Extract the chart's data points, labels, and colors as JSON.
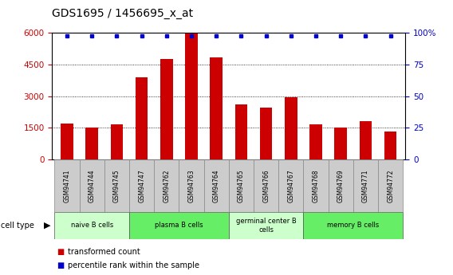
{
  "title": "GDS1695 / 1456695_x_at",
  "samples": [
    "GSM94741",
    "GSM94744",
    "GSM94745",
    "GSM94747",
    "GSM94762",
    "GSM94763",
    "GSM94764",
    "GSM94765",
    "GSM94766",
    "GSM94767",
    "GSM94768",
    "GSM94769",
    "GSM94771",
    "GSM94772"
  ],
  "transformed_count": [
    1700,
    1520,
    1650,
    3900,
    4750,
    5980,
    4850,
    2620,
    2450,
    2950,
    1650,
    1520,
    1820,
    1320
  ],
  "percentile_rank": [
    98,
    98,
    98,
    98,
    98,
    98,
    98,
    98,
    98,
    98,
    98,
    98,
    98,
    98
  ],
  "bar_color": "#cc0000",
  "dot_color": "#0000cc",
  "ylim_left": [
    0,
    6000
  ],
  "ylim_right": [
    0,
    100
  ],
  "yticks_left": [
    0,
    1500,
    3000,
    4500,
    6000
  ],
  "yticks_right": [
    0,
    25,
    50,
    75,
    100
  ],
  "cell_type_groups": [
    {
      "label": "naive B cells",
      "cols": [
        0,
        1,
        2
      ],
      "color": "#ccffcc"
    },
    {
      "label": "plasma B cells",
      "cols": [
        3,
        4,
        5,
        6
      ],
      "color": "#66ee66"
    },
    {
      "label": "germinal center B\ncells",
      "cols": [
        7,
        8,
        9
      ],
      "color": "#ccffcc"
    },
    {
      "label": "memory B cells",
      "cols": [
        10,
        11,
        12,
        13
      ],
      "color": "#66ee66"
    }
  ],
  "sample_bg_color": "#cccccc",
  "background_color": "#ffffff",
  "tick_label_color_left": "#cc0000",
  "tick_label_color_right": "#0000cc",
  "title_fontsize": 10,
  "tick_fontsize": 7.5
}
